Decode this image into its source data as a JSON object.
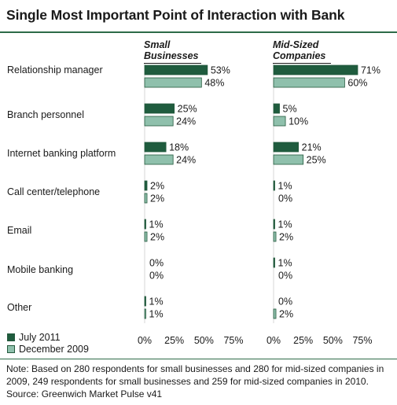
{
  "title": "Single Most Important Point of Interaction with Bank",
  "chart_data": {
    "type": "bar",
    "orientation": "horizontal",
    "categories": [
      "Relationship manager",
      "Branch personnel",
      "Internet banking platform",
      "Call center/telephone",
      "Email",
      "Mobile banking",
      "Other"
    ],
    "panels": [
      {
        "heading": [
          "Small",
          "Businesses"
        ],
        "series": [
          {
            "name": "July 2011",
            "values": [
              53,
              25,
              18,
              2,
              1,
              0,
              1
            ],
            "labels": [
              "53%",
              "25%",
              "18%",
              "2%",
              "1%",
              "0%",
              "1%"
            ]
          },
          {
            "name": "December 2009",
            "values": [
              48,
              24,
              24,
              2,
              2,
              0,
              1
            ],
            "labels": [
              "48%",
              "24%",
              "24%",
              "2%",
              "2%",
              "0%",
              "1%"
            ]
          }
        ],
        "xlim": [
          0,
          75
        ],
        "xticks": [
          "0%",
          "25%",
          "50%",
          "75%"
        ]
      },
      {
        "heading": [
          "Mid-Sized",
          "Companies"
        ],
        "series": [
          {
            "name": "July 2011",
            "values": [
              71,
              5,
              21,
              1,
              1,
              1,
              0
            ],
            "labels": [
              "71%",
              "5%",
              "21%",
              "1%",
              "1%",
              "1%",
              "0%"
            ]
          },
          {
            "name": "December 2009",
            "values": [
              60,
              10,
              25,
              0,
              2,
              0,
              2
            ],
            "labels": [
              "60%",
              "10%",
              "25%",
              "0%",
              "2%",
              "0%",
              "2%"
            ]
          }
        ],
        "xlim": [
          0,
          75
        ],
        "xticks": [
          "0%",
          "25%",
          "50%",
          "75%"
        ]
      }
    ],
    "grid": false,
    "legend_position": "bottom-left"
  },
  "legend": [
    {
      "label": "July 2011",
      "color": "#1f5c3e"
    },
    {
      "label": "December 2009",
      "color": "#8fc0ac"
    }
  ],
  "colors": {
    "series_2011": "#1f5c3e",
    "series_2009": "#8fc0ac",
    "bar_stroke": "#24593d",
    "rule": "#2d6b48"
  },
  "note": "Note: Based on 280 respondents for small businesses and 280 for mid-sized companies in 2009, 249 respondents for small businesses and 259 for mid-sized companies in 2010. Source: Greenwich Market Pulse v41"
}
